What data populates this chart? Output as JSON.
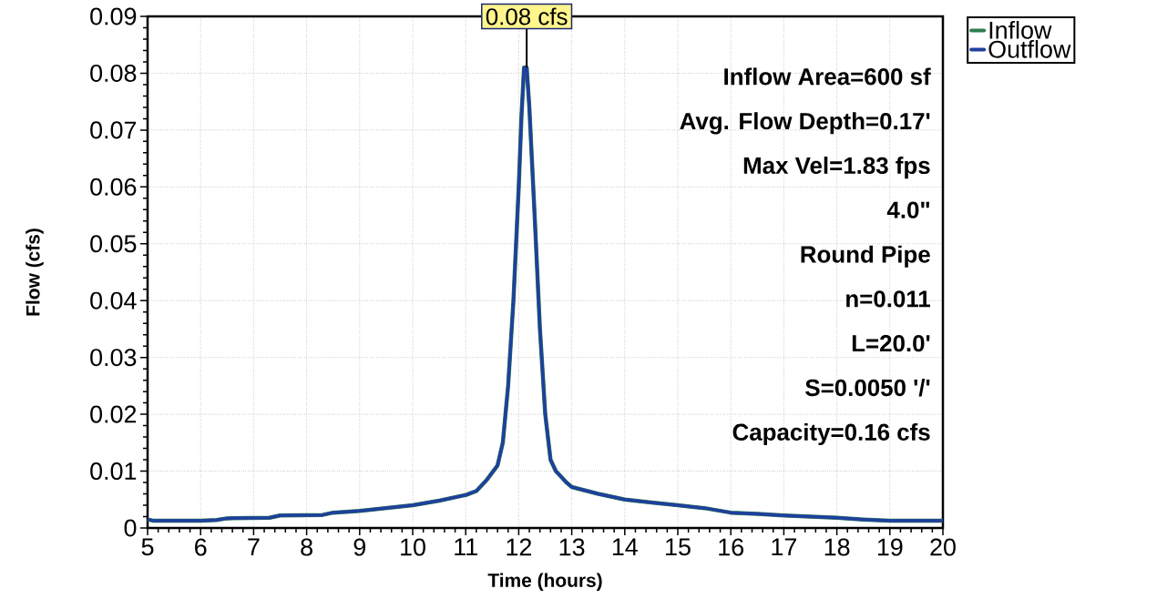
{
  "chart_data": {
    "type": "line",
    "xlabel": "Time  (hours)",
    "ylabel": "Flow  (cfs)",
    "x": [
      5.0,
      5.1,
      6.0,
      6.3,
      6.5,
      7.3,
      7.5,
      8.3,
      8.5,
      9.0,
      9.5,
      10.0,
      10.5,
      11.0,
      11.2,
      11.4,
      11.6,
      11.7,
      11.8,
      11.9,
      12.0,
      12.05,
      12.1,
      12.15,
      12.2,
      12.3,
      12.4,
      12.5,
      12.6,
      12.7,
      12.9,
      13.0,
      13.5,
      14.0,
      14.5,
      15.0,
      15.5,
      16.0,
      16.5,
      17.0,
      17.5,
      18.0,
      18.5,
      19.0,
      20.0
    ],
    "series": [
      {
        "name": "Inflow",
        "color": "#2e7d4f",
        "values": [
          0.0015,
          0.0013,
          0.0013,
          0.0014,
          0.0017,
          0.0018,
          0.0022,
          0.0023,
          0.0027,
          0.003,
          0.0035,
          0.004,
          0.0048,
          0.0058,
          0.0065,
          0.0085,
          0.011,
          0.015,
          0.025,
          0.04,
          0.06,
          0.072,
          0.081,
          0.081,
          0.074,
          0.055,
          0.035,
          0.02,
          0.012,
          0.01,
          0.008,
          0.0072,
          0.006,
          0.005,
          0.0045,
          0.004,
          0.0035,
          0.0027,
          0.0025,
          0.0022,
          0.002,
          0.0018,
          0.0015,
          0.0013,
          0.0013
        ]
      },
      {
        "name": "Outflow",
        "color": "#1f3f9f",
        "values": [
          0.0015,
          0.0013,
          0.0013,
          0.0014,
          0.0017,
          0.0018,
          0.0022,
          0.0023,
          0.0027,
          0.003,
          0.0035,
          0.004,
          0.0048,
          0.0058,
          0.0065,
          0.0085,
          0.011,
          0.015,
          0.025,
          0.04,
          0.06,
          0.072,
          0.081,
          0.081,
          0.074,
          0.055,
          0.035,
          0.02,
          0.012,
          0.01,
          0.008,
          0.0072,
          0.006,
          0.005,
          0.0045,
          0.004,
          0.0035,
          0.0027,
          0.0025,
          0.0022,
          0.002,
          0.0018,
          0.0015,
          0.0013,
          0.0013
        ]
      }
    ],
    "xlim": [
      5,
      20
    ],
    "xticks": [
      5,
      6,
      7,
      8,
      9,
      10,
      11,
      12,
      13,
      14,
      15,
      16,
      17,
      18,
      19,
      20
    ],
    "ylim": [
      0,
      0.09
    ],
    "yticks": [
      0,
      0.01,
      0.02,
      0.03,
      0.04,
      0.05,
      0.06,
      0.07,
      0.08,
      0.09
    ],
    "grid": true,
    "legend": "top right",
    "marker": "none",
    "line_style": "solid",
    "annotations": [
      {
        "text": "0.08 cfs",
        "x": 12.15,
        "y": 0.081
      },
      "Inflow Area=600 sf",
      "Avg. Flow Depth=0.17'",
      "Max Vel=1.83 fps",
      "4.0\"",
      "Round Pipe",
      "n=0.011",
      "L=20.0'",
      "S=0.0050 '/'",
      "Capacity=0.16 cfs"
    ]
  }
}
